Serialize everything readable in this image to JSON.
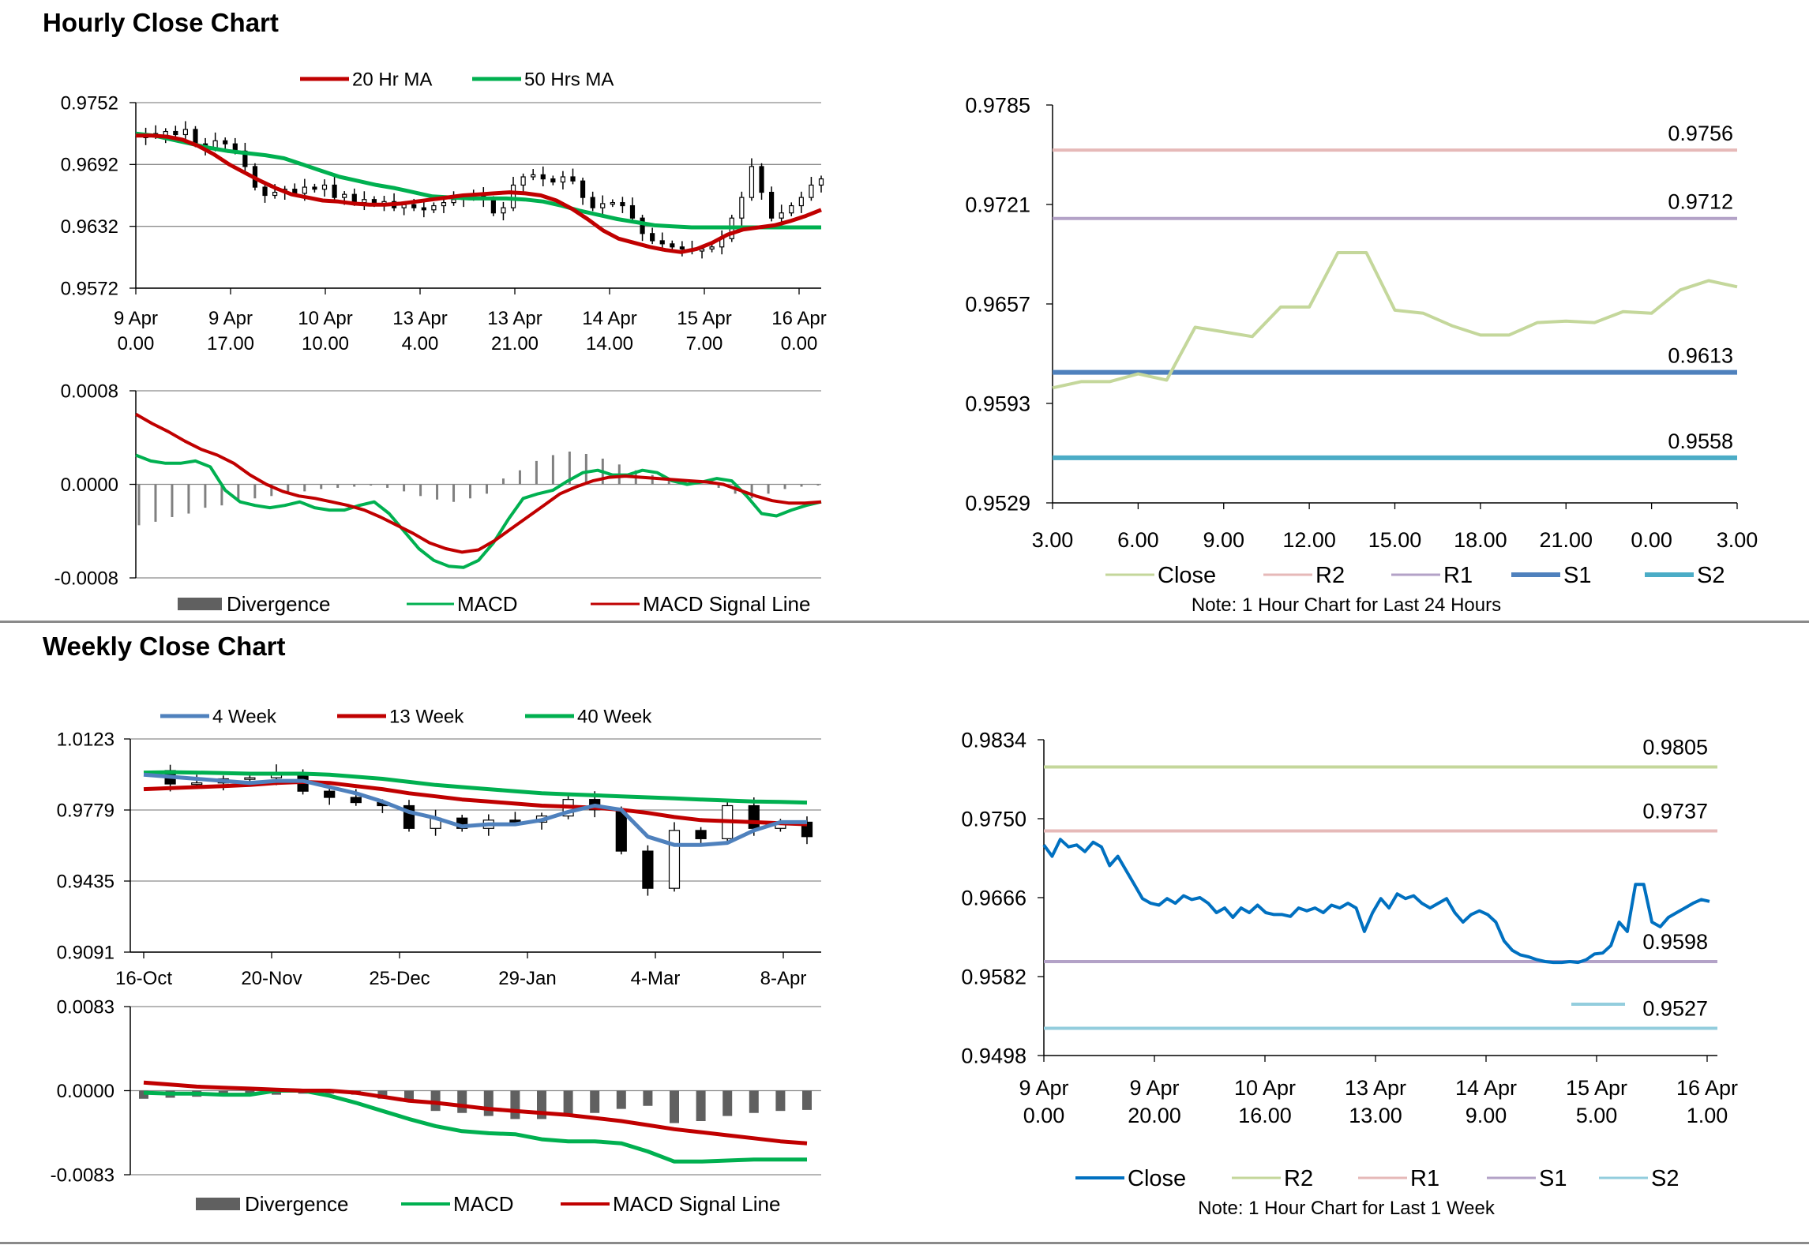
{
  "sections": {
    "hourly_title": "Hourly Close Chart",
    "weekly_title": "Weekly Close Chart"
  },
  "colors": {
    "ma20": "#c00000",
    "ma50": "#00b050",
    "divergence": "#808080",
    "macd": "#00b050",
    "signal": "#c00000",
    "close_light": "#c4d79b",
    "r2_pink": "#e6b9b8",
    "r1_purple": "#b3a2c7",
    "s1_blue": "#4f81bd",
    "s2_teal": "#4bacc6",
    "close_blue": "#0070c0",
    "r2_green": "#c4d79b",
    "s2_light": "#93cddd",
    "week4": "#4f81bd",
    "week13": "#c00000",
    "week40": "#00b050"
  },
  "chart_data": [
    {
      "id": "hourly_price",
      "type": "candlestick-line",
      "y_ticks": [
        "0.9752",
        "0.9692",
        "0.9632",
        "0.9572"
      ],
      "ylim": [
        0.9572,
        0.9752
      ],
      "x_ticks": [
        [
          "9 Apr",
          "0.00"
        ],
        [
          "9 Apr",
          "17.00"
        ],
        [
          "10 Apr",
          "10.00"
        ],
        [
          "13 Apr",
          "4.00"
        ],
        [
          "13 Apr",
          "21.00"
        ],
        [
          "14 Apr",
          "14.00"
        ],
        [
          "15 Apr",
          "7.00"
        ],
        [
          "16 Apr",
          "0.00"
        ]
      ],
      "legend": [
        "20 Hr MA",
        "50 Hrs MA"
      ],
      "close": [
        0.9718,
        0.9722,
        0.972,
        0.9724,
        0.9721,
        0.9726,
        0.9712,
        0.9708,
        0.9715,
        0.9712,
        0.9705,
        0.969,
        0.967,
        0.9662,
        0.9665,
        0.9668,
        0.9664,
        0.967,
        0.9668,
        0.9672,
        0.966,
        0.9663,
        0.9655,
        0.9658,
        0.9654,
        0.9656,
        0.965,
        0.9653,
        0.965,
        0.9648,
        0.9652,
        0.9655,
        0.9658,
        0.966,
        0.9662,
        0.9658,
        0.9645,
        0.965,
        0.9672,
        0.968,
        0.9682,
        0.9678,
        0.9675,
        0.968,
        0.9676,
        0.966,
        0.965,
        0.9654,
        0.9655,
        0.9652,
        0.964,
        0.9625,
        0.9618,
        0.9615,
        0.9612,
        0.961,
        0.9608,
        0.961,
        0.9612,
        0.962,
        0.964,
        0.966,
        0.969,
        0.9665,
        0.964,
        0.9645,
        0.9652,
        0.966,
        0.9672,
        0.9678
      ],
      "ma20": [
        0.972,
        0.972,
        0.9719,
        0.9716,
        0.971,
        0.9702,
        0.9692,
        0.9684,
        0.9676,
        0.9669,
        0.9663,
        0.966,
        0.9657,
        0.9656,
        0.9654,
        0.9653,
        0.9653,
        0.9654,
        0.9656,
        0.9658,
        0.966,
        0.9662,
        0.9663,
        0.9664,
        0.9665,
        0.9664,
        0.9662,
        0.9657,
        0.9649,
        0.9639,
        0.9628,
        0.962,
        0.9616,
        0.9612,
        0.9609,
        0.9607,
        0.961,
        0.9616,
        0.9624,
        0.9629,
        0.9631,
        0.9633,
        0.9637,
        0.9642,
        0.9648
      ],
      "ma50": [
        0.9722,
        0.972,
        0.9716,
        0.9712,
        0.9708,
        0.9705,
        0.9703,
        0.9701,
        0.9698,
        0.9692,
        0.9686,
        0.968,
        0.9676,
        0.9672,
        0.9669,
        0.9665,
        0.9661,
        0.966,
        0.9659,
        0.9659,
        0.9659,
        0.9658,
        0.9656,
        0.9652,
        0.9647,
        0.9643,
        0.9639,
        0.9636,
        0.9633,
        0.9632,
        0.9631,
        0.9631,
        0.9631,
        0.9631,
        0.9631,
        0.9631,
        0.9631,
        0.9631
      ]
    },
    {
      "id": "hourly_macd",
      "type": "bar-line",
      "y_ticks": [
        "0.0008",
        "0.0000",
        "-0.0008"
      ],
      "ylim": [
        -0.0008,
        0.0008
      ],
      "legend": [
        "Divergence",
        "MACD",
        "MACD Signal Line"
      ],
      "macd": [
        0.00025,
        0.0002,
        0.00018,
        0.00018,
        0.0002,
        0.00015,
        -5e-05,
        -0.00015,
        -0.00018,
        -0.0002,
        -0.00018,
        -0.00015,
        -0.0002,
        -0.00022,
        -0.00022,
        -0.00018,
        -0.00015,
        -0.00025,
        -0.0004,
        -0.00055,
        -0.00065,
        -0.0007,
        -0.00071,
        -0.00065,
        -0.0005,
        -0.0003,
        -0.00012,
        -8e-05,
        -5e-05,
        3e-05,
        0.0001,
        0.00012,
        8e-05,
        8e-05,
        0.00012,
        0.0001,
        3e-05,
        0.0,
        2e-05,
        5e-05,
        3e-05,
        -0.0001,
        -0.00025,
        -0.00027,
        -0.00022,
        -0.00018,
        -0.00015
      ],
      "signal": [
        0.0006,
        0.00052,
        0.00045,
        0.00037,
        0.0003,
        0.00025,
        0.00018,
        8e-05,
        0.0,
        -6e-05,
        -0.0001,
        -0.00012,
        -0.00015,
        -0.00018,
        -0.00022,
        -0.00028,
        -0.00035,
        -0.00042,
        -0.0005,
        -0.00055,
        -0.00058,
        -0.00056,
        -0.00048,
        -0.00038,
        -0.00028,
        -0.00018,
        -8e-05,
        -2e-05,
        3e-05,
        6e-05,
        7e-05,
        6e-05,
        5e-05,
        4e-05,
        3e-05,
        2e-05,
        0.0,
        -5e-05,
        -0.0001,
        -0.00014,
        -0.00016,
        -0.00016,
        -0.00015
      ],
      "divergence": [
        -0.00035,
        -0.00032,
        -0.00028,
        -0.00025,
        -0.0002,
        -0.00018,
        -0.00015,
        -0.00012,
        -0.0001,
        -8e-05,
        -6e-05,
        -4e-05,
        -3e-05,
        -2e-05,
        -1e-05,
        -3e-05,
        -6e-05,
        -0.0001,
        -0.00013,
        -0.00015,
        -0.00012,
        -8e-05,
        5e-05,
        0.00012,
        0.0002,
        0.00025,
        0.00028,
        0.00026,
        0.00022,
        0.00017,
        0.00012,
        8e-05,
        5e-05,
        2e-05,
        0.0,
        -3e-05,
        -8e-05,
        -0.00012,
        -8e-05,
        -4e-05,
        -2e-05,
        -1e-05
      ]
    },
    {
      "id": "hourly_levels",
      "type": "line",
      "y_ticks": [
        "0.9785",
        "0.9721",
        "0.9657",
        "0.9593",
        "0.9529"
      ],
      "ylim": [
        0.9529,
        0.9785
      ],
      "x_ticks": [
        "3.00",
        "6.00",
        "9.00",
        "12.00",
        "15.00",
        "18.00",
        "21.00",
        "0.00",
        "3.00"
      ],
      "legend": [
        "Close",
        "R2",
        "R1",
        "S1",
        "S2"
      ],
      "close": [
        0.9603,
        0.9607,
        0.9607,
        0.9612,
        0.9608,
        0.9642,
        0.9639,
        0.9636,
        0.9655,
        0.9655,
        0.969,
        0.969,
        0.9653,
        0.9651,
        0.9643,
        0.9637,
        0.9637,
        0.9645,
        0.9646,
        0.9645,
        0.9652,
        0.9651,
        0.9666,
        0.9672,
        0.9668
      ],
      "levels": {
        "R2": "0.9756",
        "R1": "0.9712",
        "S1": "0.9613",
        "S2": "0.9558"
      },
      "note": "Note: 1 Hour Chart for Last 24 Hours"
    },
    {
      "id": "weekly_price",
      "type": "candlestick-line",
      "y_ticks": [
        "1.0123",
        "0.9779",
        "0.9435",
        "0.9091"
      ],
      "ylim": [
        0.9091,
        1.0123
      ],
      "x_ticks": [
        "16-Oct",
        "20-Nov",
        "25-Dec",
        "29-Jan",
        "4-Mar",
        "8-Apr"
      ],
      "legend": [
        "4 Week",
        "13 Week",
        "40 Week"
      ],
      "close": [
        0.997,
        0.9905,
        0.991,
        0.993,
        0.9935,
        0.996,
        0.987,
        0.984,
        0.9815,
        0.98,
        0.969,
        0.974,
        0.969,
        0.973,
        0.972,
        0.975,
        0.983,
        0.978,
        0.958,
        0.94,
        0.968,
        0.964,
        0.98,
        0.969,
        0.972,
        0.965
      ],
      "week4": [
        0.995,
        0.994,
        0.993,
        0.992,
        0.991,
        0.992,
        0.992,
        0.989,
        0.986,
        0.982,
        0.977,
        0.974,
        0.97,
        0.971,
        0.971,
        0.973,
        0.977,
        0.98,
        0.978,
        0.965,
        0.961,
        0.961,
        0.962,
        0.968,
        0.972,
        0.972
      ],
      "week13": [
        0.988,
        0.9885,
        0.989,
        0.9895,
        0.99,
        0.991,
        0.9915,
        0.991,
        0.9895,
        0.988,
        0.986,
        0.9845,
        0.983,
        0.982,
        0.981,
        0.98,
        0.9795,
        0.979,
        0.978,
        0.9765,
        0.9745,
        0.973,
        0.9725,
        0.972,
        0.9715,
        0.971
      ],
      "week40": [
        0.996,
        0.9962,
        0.996,
        0.9958,
        0.9955,
        0.9955,
        0.9955,
        0.995,
        0.994,
        0.993,
        0.9915,
        0.99,
        0.989,
        0.988,
        0.987,
        0.986,
        0.9855,
        0.985,
        0.9845,
        0.984,
        0.9835,
        0.983,
        0.9825,
        0.982,
        0.9818,
        0.9815
      ]
    },
    {
      "id": "weekly_macd",
      "type": "bar-line",
      "y_ticks": [
        "0.0083",
        "0.0000",
        "-0.0083"
      ],
      "ylim": [
        -0.0083,
        0.0083
      ],
      "legend": [
        "Divergence",
        "MACD",
        "MACD Signal Line"
      ],
      "divergence": [
        -0.0008,
        -0.0007,
        -0.0006,
        -0.0005,
        -0.0004,
        -0.0004,
        -0.0003,
        -0.0003,
        -0.0004,
        -0.0008,
        -0.001,
        -0.002,
        -0.0022,
        -0.0025,
        -0.0028,
        -0.0028,
        -0.0025,
        -0.0022,
        -0.0018,
        -0.0015,
        -0.0032,
        -0.003,
        -0.0025,
        -0.0022,
        -0.002,
        -0.0019
      ],
      "macd": [
        -0.0002,
        -0.0003,
        -0.0003,
        -0.0004,
        -0.0004,
        0.0,
        0.0,
        -0.0005,
        -0.0012,
        -0.002,
        -0.0028,
        -0.0035,
        -0.004,
        -0.0042,
        -0.0043,
        -0.0048,
        -0.005,
        -0.005,
        -0.0052,
        -0.006,
        -0.007,
        -0.007,
        -0.0069,
        -0.0068,
        -0.0068,
        -0.0068
      ],
      "signal": [
        0.0008,
        0.0006,
        0.0004,
        0.0003,
        0.0002,
        0.0001,
        0.0,
        0.0,
        -0.0002,
        -0.0006,
        -0.001,
        -0.0012,
        -0.0015,
        -0.0018,
        -0.002,
        -0.0022,
        -0.0024,
        -0.0027,
        -0.003,
        -0.0034,
        -0.0038,
        -0.0041,
        -0.0044,
        -0.0047,
        -0.005,
        -0.0052
      ]
    },
    {
      "id": "weekly_levels",
      "type": "line",
      "y_ticks": [
        "0.9834",
        "0.9750",
        "0.9666",
        "0.9582",
        "0.9498"
      ],
      "ylim": [
        0.9498,
        0.9834
      ],
      "x_ticks": [
        [
          "9 Apr",
          "0.00"
        ],
        [
          "9 Apr",
          "20.00"
        ],
        [
          "10 Apr",
          "16.00"
        ],
        [
          "13 Apr",
          "13.00"
        ],
        [
          "14 Apr",
          "9.00"
        ],
        [
          "15 Apr",
          "5.00"
        ],
        [
          "16 Apr",
          "1.00"
        ]
      ],
      "legend": [
        "Close",
        "R2",
        "R1",
        "S1",
        "S2"
      ],
      "close": [
        0.9722,
        0.971,
        0.9728,
        0.972,
        0.9722,
        0.9715,
        0.9725,
        0.972,
        0.97,
        0.971,
        0.9695,
        0.968,
        0.9665,
        0.966,
        0.9658,
        0.9665,
        0.966,
        0.9668,
        0.9664,
        0.9666,
        0.966,
        0.965,
        0.9655,
        0.9645,
        0.9655,
        0.965,
        0.9658,
        0.965,
        0.9648,
        0.9648,
        0.9646,
        0.9655,
        0.9652,
        0.9655,
        0.965,
        0.9658,
        0.9655,
        0.966,
        0.9655,
        0.963,
        0.965,
        0.9665,
        0.9655,
        0.967,
        0.9665,
        0.9668,
        0.966,
        0.9655,
        0.966,
        0.9665,
        0.965,
        0.964,
        0.9648,
        0.9652,
        0.9648,
        0.964,
        0.962,
        0.961,
        0.9605,
        0.9603,
        0.96,
        0.9598,
        0.9597,
        0.9597,
        0.9598,
        0.9597,
        0.96,
        0.9606,
        0.9607,
        0.9615,
        0.964,
        0.963,
        0.968,
        0.968,
        0.964,
        0.9635,
        0.9645,
        0.965,
        0.9655,
        0.966,
        0.9664,
        0.9662
      ],
      "levels": {
        "R2": "0.9805",
        "R1": "0.9737",
        "S1": "0.9598",
        "S2": "0.9527"
      },
      "note": "Note: 1 Hour Chart for Last 1 Week"
    }
  ]
}
